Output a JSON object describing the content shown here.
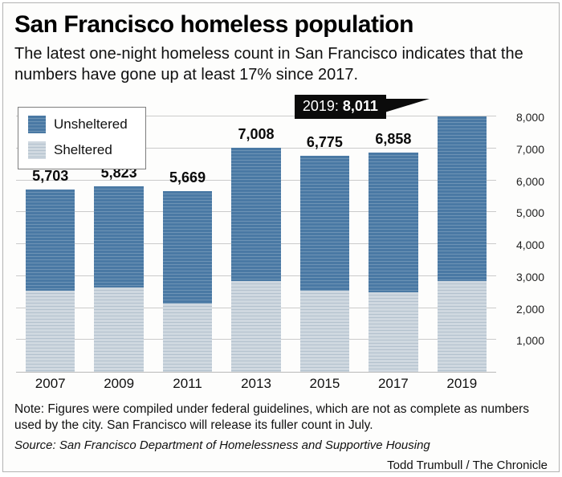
{
  "title": "San Francisco homeless population",
  "subtitle": "The latest one-night homeless count in San Francisco indicates that the numbers have gone up at least 17% since 2017.",
  "callout": {
    "prefix": "2019:",
    "value": "8,011"
  },
  "note": "Note: Figures were compiled under federal guidelines, which are not as complete as numbers used by the city. San Francisco will release its fuller count in July.",
  "source": "Source: San Francisco Department of Homelessness and Supportive Housing",
  "credit": "Todd Trumbull / The Chronicle",
  "chart_data": {
    "type": "bar",
    "stacked": true,
    "title": "San Francisco homeless population",
    "categories": [
      "2007",
      "2009",
      "2011",
      "2013",
      "2015",
      "2017",
      "2019"
    ],
    "totals": [
      5703,
      5823,
      5669,
      7008,
      6775,
      6858,
      8011
    ],
    "bar_labels": [
      "5,703",
      "5,823",
      "5,669",
      "7,008",
      "6,775",
      "6,858",
      ""
    ],
    "series": [
      {
        "name": "Unsheltered",
        "values": [
          3153,
          3173,
          3519,
          4158,
          4225,
          4358,
          5161
        ]
      },
      {
        "name": "Sheltered",
        "values": [
          2550,
          2650,
          2150,
          2850,
          2550,
          2500,
          2850
        ]
      }
    ],
    "ylim": [
      0,
      8000
    ],
    "yticks": [
      {
        "value": 1000,
        "label": "1,000"
      },
      {
        "value": 2000,
        "label": "2,000"
      },
      {
        "value": 3000,
        "label": "3,000"
      },
      {
        "value": 4000,
        "label": "4,000"
      },
      {
        "value": 5000,
        "label": "5,000"
      },
      {
        "value": 6000,
        "label": "6,000"
      },
      {
        "value": 7000,
        "label": "7,000"
      },
      {
        "value": 8000,
        "label": "8,000"
      }
    ],
    "grid": true,
    "legend_position": "top-left",
    "colors": {
      "unsheltered": "#4a79a4",
      "unsheltered_stripe": "#6e94b6",
      "sheltered": "#cfd8e0",
      "sheltered_stripe": "#b3c1cd",
      "callout_bg": "#0b0b0b",
      "gridline": "#cbcbcb"
    }
  }
}
